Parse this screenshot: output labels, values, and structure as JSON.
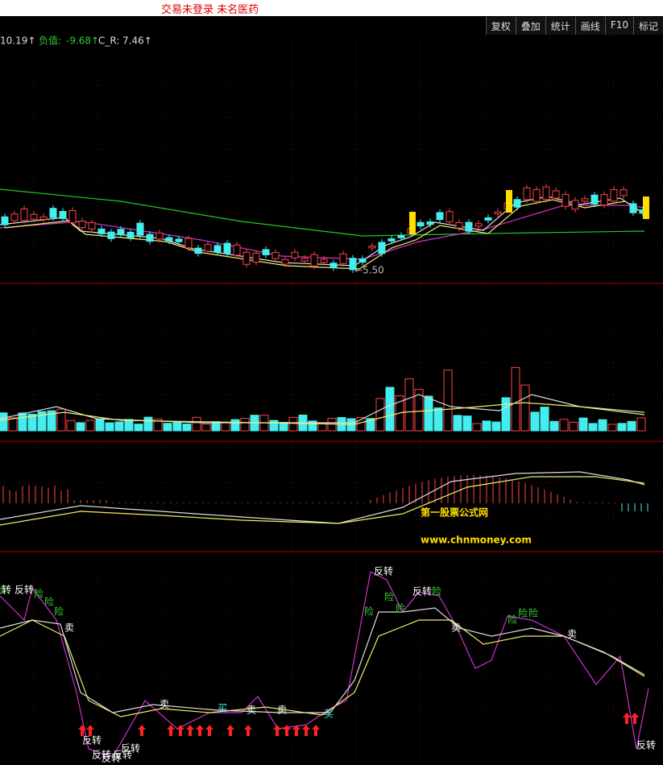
{
  "header": {
    "title": "交易未登录  未名医药"
  },
  "toolbar": [
    "复权",
    "叠加",
    "统计",
    "画线",
    "F10",
    "标记"
  ],
  "indicator": {
    "price": "10.19↑",
    "neg_label": "负值:",
    "neg_value": "-9.68↑",
    "cr_label": "C_R:",
    "cr_value": "7.46↑"
  },
  "low_marker": "←5.50",
  "watermark": {
    "name": "第一股票公式网",
    "url": "www.chnmoney.com"
  },
  "signals": {
    "reversal": "反转",
    "risk": "险",
    "sell": "卖",
    "buy": "买"
  }
}
